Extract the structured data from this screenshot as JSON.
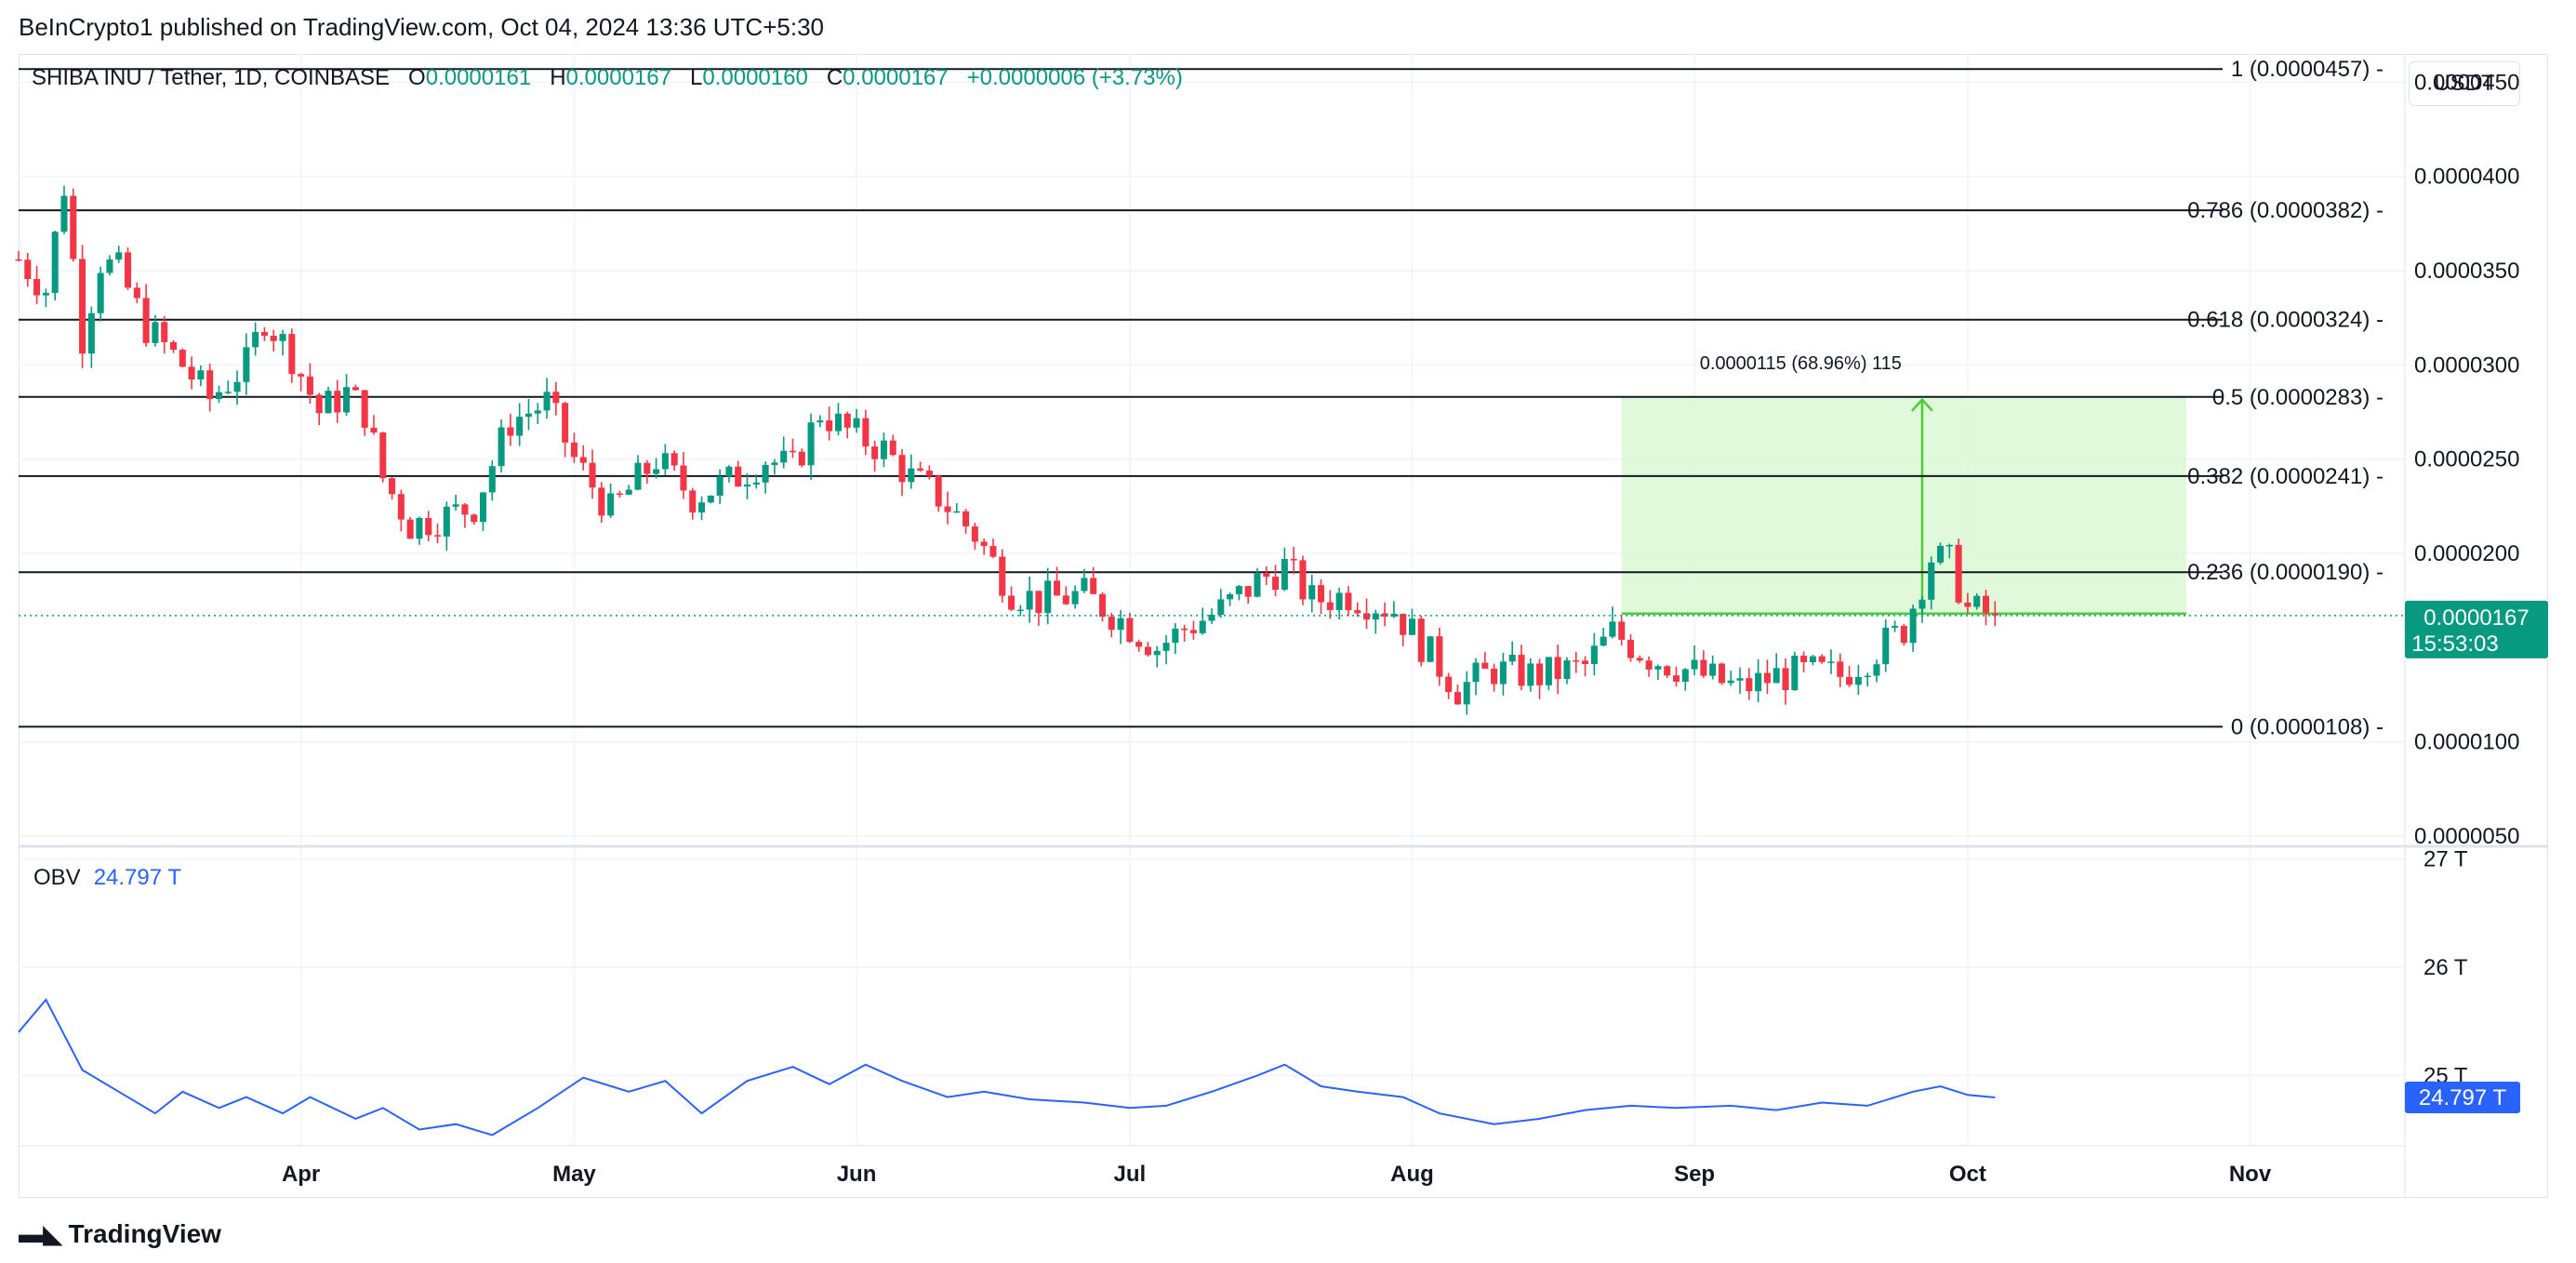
{
  "header": {
    "published": "BeInCrypto1 published on TradingView.com, Oct 04, 2024 13:36 UTC+5:30",
    "symbol": "SHIBA INU / Tether, 1D, COINBASE",
    "o_label": "O",
    "o_value": "0.0000161",
    "h_label": "H",
    "h_value": "0.0000167",
    "l_label": "L",
    "l_value": "0.0000160",
    "c_label": "C",
    "c_value": "0.0000167",
    "change": "+0.0000006 (+3.73%)",
    "currency": "USDT"
  },
  "colors": {
    "up": "#089981",
    "down": "#f23645",
    "fib": "#131722",
    "obv": "#2962ff",
    "measure_fill": "#d8f8d2",
    "measure_line": "#4ccc3a"
  },
  "chart_data": [
    {
      "type": "candlestick",
      "title": "SHIBA INU / Tether, 1D, COINBASE",
      "y_ticks": [
        "0.0000450",
        "0.0000400",
        "0.0000350",
        "0.0000300",
        "0.0000250",
        "0.0000200",
        "0.0000100",
        "0.0000050"
      ],
      "y_tick_values": [
        4.5e-05,
        4e-05,
        3.5e-05,
        3e-05,
        2.5e-05,
        2e-05,
        1e-05,
        5e-06
      ],
      "ylim": [
        4.6e-06,
        4.65e-05
      ],
      "x_ticks": [
        "Apr",
        "May",
        "Jun",
        "Jul",
        "Aug",
        "Sep",
        "Oct",
        "Nov"
      ],
      "x_tick_dates": [
        "2024-04-01",
        "2024-05-01",
        "2024-06-01",
        "2024-07-01",
        "2024-08-01",
        "2024-09-01",
        "2024-10-01",
        "2024-11-01"
      ],
      "xlim": [
        "2024-03-01",
        "2024-11-18"
      ],
      "candle_path": [
        [
          "2024-03-01",
          3.56e-05
        ],
        [
          "2024-03-04",
          3.4e-05
        ],
        [
          "2024-03-06",
          3.95e-05
        ],
        [
          "2024-03-08",
          3.15e-05
        ],
        [
          "2024-03-10",
          3.55e-05
        ],
        [
          "2024-03-12",
          3.5e-05
        ],
        [
          "2024-03-15",
          3.2e-05
        ],
        [
          "2024-03-19",
          3e-05
        ],
        [
          "2024-03-22",
          2.82e-05
        ],
        [
          "2024-03-26",
          3e-05
        ],
        [
          "2024-03-28",
          3.25e-05
        ],
        [
          "2024-03-31",
          3.05e-05
        ],
        [
          "2024-04-03",
          2.75e-05
        ],
        [
          "2024-04-06",
          2.85e-05
        ],
        [
          "2024-04-08",
          2.75e-05
        ],
        [
          "2024-04-10",
          2.4e-05
        ],
        [
          "2024-04-13",
          2.15e-05
        ],
        [
          "2024-04-17",
          2.2e-05
        ],
        [
          "2024-04-20",
          2.25e-05
        ],
        [
          "2024-04-24",
          2.7e-05
        ],
        [
          "2024-04-28",
          2.8e-05
        ],
        [
          "2024-05-01",
          2.5e-05
        ],
        [
          "2024-05-05",
          2.22e-05
        ],
        [
          "2024-05-10",
          2.5e-05
        ],
        [
          "2024-05-14",
          2.3e-05
        ],
        [
          "2024-05-18",
          2.38e-05
        ],
        [
          "2024-05-22",
          2.5e-05
        ],
        [
          "2024-05-25",
          2.45e-05
        ],
        [
          "2024-05-28",
          2.75e-05
        ],
        [
          "2024-05-31",
          2.65e-05
        ],
        [
          "2024-06-04",
          2.55e-05
        ],
        [
          "2024-06-07",
          2.4e-05
        ],
        [
          "2024-06-10",
          2.3e-05
        ],
        [
          "2024-06-14",
          2.1e-05
        ],
        [
          "2024-06-18",
          1.8e-05
        ],
        [
          "2024-06-21",
          1.75e-05
        ],
        [
          "2024-06-26",
          1.78e-05
        ],
        [
          "2024-06-30",
          1.65e-05
        ],
        [
          "2024-07-04",
          1.5e-05
        ],
        [
          "2024-07-07",
          1.6e-05
        ],
        [
          "2024-07-11",
          1.7e-05
        ],
        [
          "2024-07-15",
          1.85e-05
        ],
        [
          "2024-07-18",
          1.93e-05
        ],
        [
          "2024-07-21",
          1.75e-05
        ],
        [
          "2024-07-25",
          1.78e-05
        ],
        [
          "2024-07-30",
          1.7e-05
        ],
        [
          "2024-08-04",
          1.4e-05
        ],
        [
          "2024-08-06",
          1.28e-05
        ],
        [
          "2024-08-10",
          1.38e-05
        ],
        [
          "2024-08-15",
          1.35e-05
        ],
        [
          "2024-08-20",
          1.4e-05
        ],
        [
          "2024-08-23",
          1.58e-05
        ],
        [
          "2024-08-27",
          1.45e-05
        ],
        [
          "2024-09-02",
          1.35e-05
        ],
        [
          "2024-09-06",
          1.28e-05
        ],
        [
          "2024-09-10",
          1.35e-05
        ],
        [
          "2024-09-14",
          1.37e-05
        ],
        [
          "2024-09-17",
          1.35e-05
        ],
        [
          "2024-09-20",
          1.45e-05
        ],
        [
          "2024-09-24",
          1.6e-05
        ],
        [
          "2024-09-27",
          1.98e-05
        ],
        [
          "2024-09-29",
          1.95e-05
        ],
        [
          "2024-10-01",
          1.7e-05
        ],
        [
          "2024-10-04",
          1.67e-05
        ]
      ],
      "last_price_label": "0.0000167",
      "countdown": "15:53:03",
      "last_price": 1.67e-05,
      "fibonacci": {
        "start": "2024-03-01",
        "end": "2024-10-25",
        "levels": [
          {
            "ratio": 1,
            "price": 4.57e-05,
            "label": "1 (0.0000457)"
          },
          {
            "ratio": 0.786,
            "price": 3.82e-05,
            "label": "0.786 (0.0000382)"
          },
          {
            "ratio": 0.618,
            "price": 3.24e-05,
            "label": "0.618 (0.0000324)"
          },
          {
            "ratio": 0.5,
            "price": 2.83e-05,
            "label": "0.5 (0.0000283)"
          },
          {
            "ratio": 0.382,
            "price": 2.41e-05,
            "label": "0.382 (0.0000241)"
          },
          {
            "ratio": 0.236,
            "price": 1.9e-05,
            "label": "0.236 (0.0000190)"
          },
          {
            "ratio": 0,
            "price": 1.08e-05,
            "label": "0 (0.0000108)"
          }
        ]
      },
      "measure": {
        "x_start": "2024-08-24",
        "x_end": "2024-10-25",
        "y_low": 1.68e-05,
        "y_high": 2.83e-05,
        "label": "0.0000115 (68.96%) 115"
      }
    },
    {
      "type": "line",
      "title": "OBV",
      "series": [
        {
          "name": "OBV",
          "value_label": "24.797 T",
          "points": [
            [
              "2024-03-01",
              25.4
            ],
            [
              "2024-03-04",
              25.7
            ],
            [
              "2024-03-08",
              25.05
            ],
            [
              "2024-03-12",
              24.85
            ],
            [
              "2024-03-16",
              24.65
            ],
            [
              "2024-03-19",
              24.85
            ],
            [
              "2024-03-23",
              24.7
            ],
            [
              "2024-03-26",
              24.8
            ],
            [
              "2024-03-30",
              24.65
            ],
            [
              "2024-04-02",
              24.8
            ],
            [
              "2024-04-07",
              24.6
            ],
            [
              "2024-04-10",
              24.7
            ],
            [
              "2024-04-14",
              24.5
            ],
            [
              "2024-04-18",
              24.55
            ],
            [
              "2024-04-22",
              24.45
            ],
            [
              "2024-04-27",
              24.7
            ],
            [
              "2024-05-02",
              24.98
            ],
            [
              "2024-05-07",
              24.85
            ],
            [
              "2024-05-11",
              24.95
            ],
            [
              "2024-05-15",
              24.65
            ],
            [
              "2024-05-20",
              24.95
            ],
            [
              "2024-05-25",
              25.08
            ],
            [
              "2024-05-29",
              24.92
            ],
            [
              "2024-06-02",
              25.1
            ],
            [
              "2024-06-06",
              24.95
            ],
            [
              "2024-06-11",
              24.8
            ],
            [
              "2024-06-15",
              24.85
            ],
            [
              "2024-06-20",
              24.78
            ],
            [
              "2024-06-26",
              24.75
            ],
            [
              "2024-07-01",
              24.7
            ],
            [
              "2024-07-05",
              24.72
            ],
            [
              "2024-07-10",
              24.85
            ],
            [
              "2024-07-15",
              25.0
            ],
            [
              "2024-07-18",
              25.1
            ],
            [
              "2024-07-22",
              24.9
            ],
            [
              "2024-07-26",
              24.85
            ],
            [
              "2024-07-31",
              24.8
            ],
            [
              "2024-08-04",
              24.65
            ],
            [
              "2024-08-10",
              24.55
            ],
            [
              "2024-08-15",
              24.6
            ],
            [
              "2024-08-20",
              24.68
            ],
            [
              "2024-08-25",
              24.72
            ],
            [
              "2024-08-30",
              24.7
            ],
            [
              "2024-09-05",
              24.72
            ],
            [
              "2024-09-10",
              24.68
            ],
            [
              "2024-09-15",
              24.75
            ],
            [
              "2024-09-20",
              24.72
            ],
            [
              "2024-09-25",
              24.85
            ],
            [
              "2024-09-28",
              24.9
            ],
            [
              "2024-10-01",
              24.82
            ],
            [
              "2024-10-04",
              24.797
            ]
          ]
        }
      ],
      "y_ticks": [
        "27 T",
        "26 T",
        "25 T"
      ],
      "y_tick_values": [
        27,
        26,
        25
      ],
      "ylim": [
        24.35,
        27.1
      ]
    }
  ],
  "footer": {
    "brand": "TradingView"
  }
}
